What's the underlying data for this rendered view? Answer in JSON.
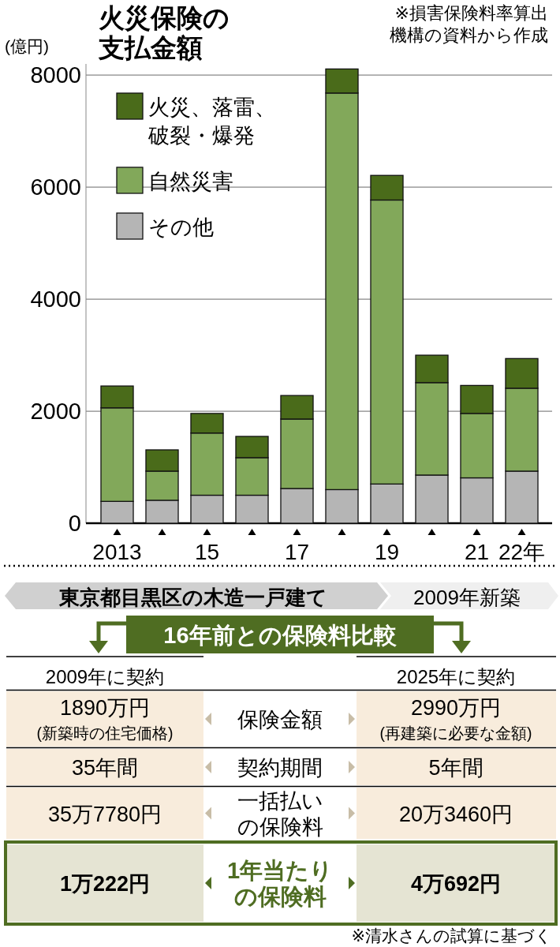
{
  "chart_data": [
    {
      "type": "bar",
      "title": "火災保険の支払金額",
      "ylabel": "(億円)",
      "annotations": [
        "※損害保険料率算出機構の資料から作成"
      ],
      "categories": [
        "2013",
        null,
        "15",
        null,
        "17",
        null,
        "19",
        null,
        "21",
        "22年"
      ],
      "stacked": true,
      "ylim": [
        0,
        8200
      ],
      "yticks": [
        0,
        2000,
        4000,
        6000,
        8000
      ],
      "grid": "y",
      "legend": "top left",
      "series": [
        {
          "name": "その他",
          "color": "#b5b5b5",
          "values": [
            390,
            410,
            500,
            500,
            620,
            600,
            700,
            860,
            810,
            930
          ]
        },
        {
          "name": "自然災害",
          "color": "#82a85a",
          "values": [
            1670,
            520,
            1110,
            670,
            1240,
            7080,
            5070,
            1650,
            1150,
            1480
          ]
        },
        {
          "name": "火災、落雷、破裂・爆発",
          "color": "#4a6b1a",
          "values": [
            390,
            380,
            350,
            380,
            420,
            430,
            440,
            490,
            500,
            530
          ]
        }
      ]
    },
    {
      "type": "other",
      "title": "東京都目黒区の木造一戸建て",
      "subtitle": "2009年新築",
      "annotations": [
        "16年前との保険料比較",
        "2009年に契約",
        "2025年に契約",
        "1890万円",
        "(新築時の住宅価格)",
        "保険金額",
        "2990万円",
        "(再建築に必要な金額)",
        "35年間",
        "契約期間",
        "5年間",
        "35万7780円",
        "一括払いの保険料",
        "20万3460円",
        "1万222円",
        "1年当たりの保険料",
        "4万692円",
        "※清水さんの試算に基づく"
      ]
    }
  ]
}
